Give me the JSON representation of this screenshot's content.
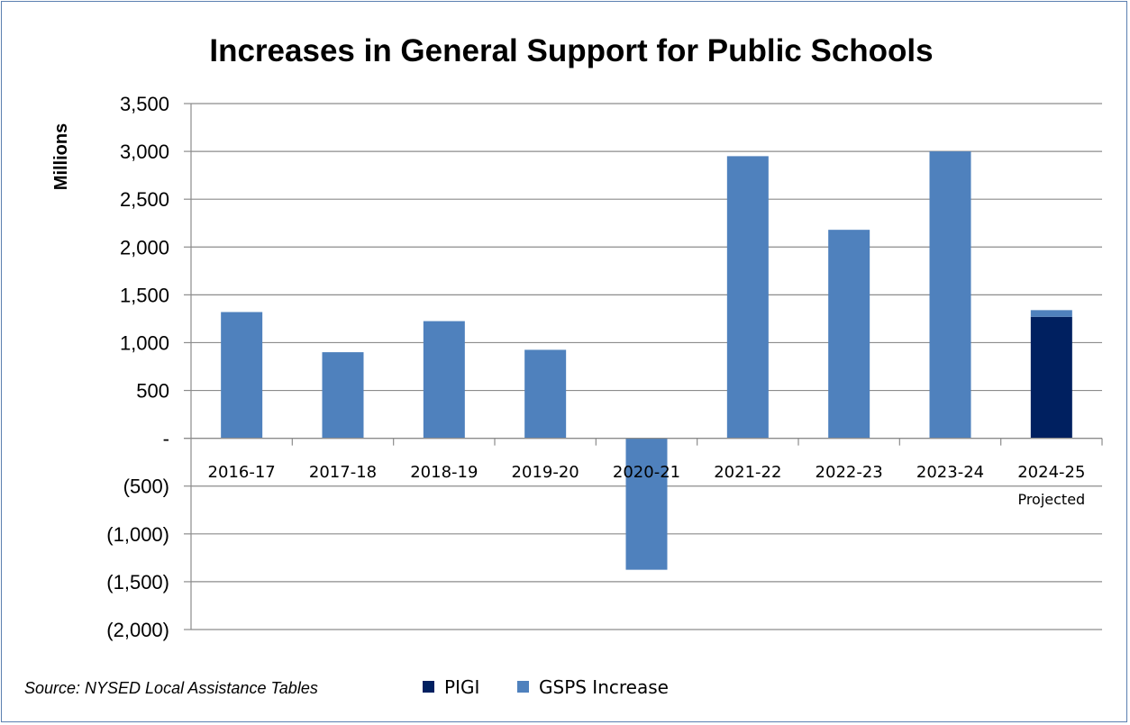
{
  "chart_data": {
    "type": "bar",
    "stacked": true,
    "title": "Increases in General Support for Public Schools",
    "ylabel": "Millions",
    "xlabel": "",
    "ylim": [
      -2000,
      3500
    ],
    "ytick_values": [
      3500,
      3000,
      2500,
      2000,
      1500,
      1000,
      500,
      0,
      -500,
      -1000,
      -1500,
      -2000
    ],
    "ytick_labels": [
      "3,500",
      "3,000",
      "2,500",
      "2,000",
      "1,500",
      "1,000",
      "500",
      "-",
      "(500)",
      "(1,000)",
      "(1,500)",
      "(2,000)"
    ],
    "grid": true,
    "categories": [
      "2016-17",
      "2017-18",
      "2018-19",
      "2019-20",
      "2020-21",
      "2021-22",
      "2022-23",
      "2023-24",
      "2024-25"
    ],
    "category_sublabels": [
      "",
      "",
      "",
      "",
      "",
      "",
      "",
      "",
      "Projected"
    ],
    "series": [
      {
        "name": "PIGI",
        "color": "#002060",
        "values": [
          0,
          0,
          0,
          0,
          0,
          0,
          0,
          0,
          1270
        ]
      },
      {
        "name": "GSPS Increase",
        "color": "#4f81bd",
        "values": [
          1320,
          900,
          1225,
          925,
          -1375,
          2950,
          2180,
          3000,
          70
        ]
      }
    ],
    "legend_position": "bottom",
    "source": "Source: NYSED Local Assistance Tables"
  }
}
